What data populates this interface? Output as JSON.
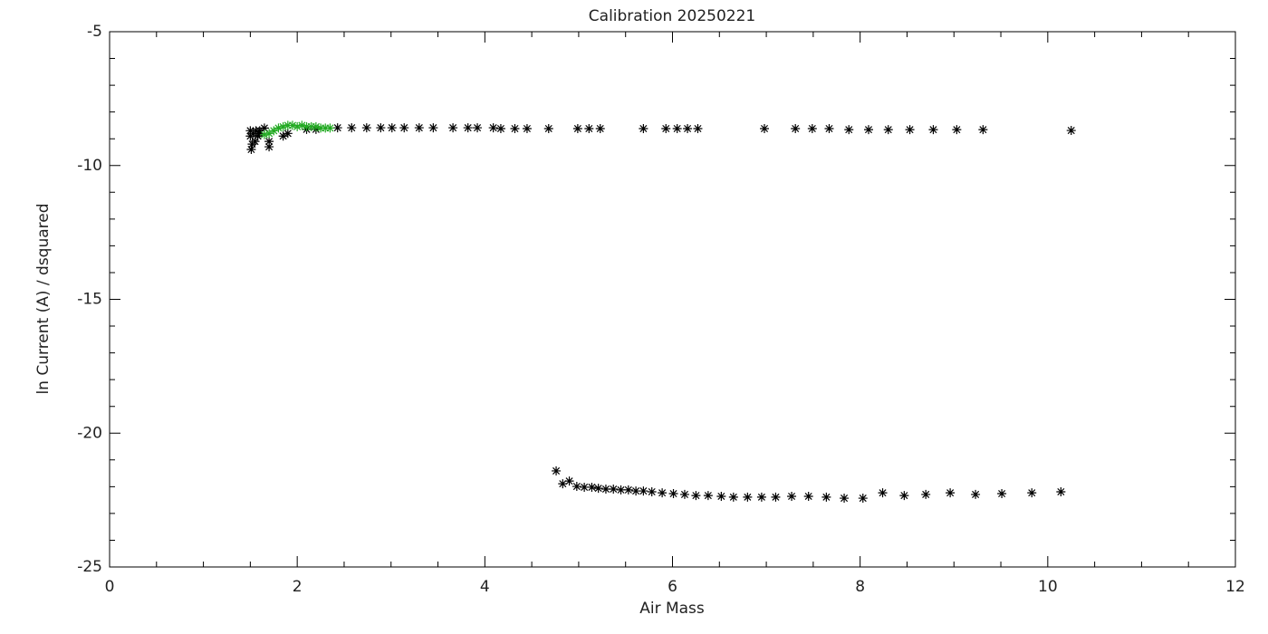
{
  "chart_data": {
    "type": "scatter",
    "title": "Calibration 20250221",
    "x_label": "Air Mass",
    "y_label": "ln Current (A) / dsquared",
    "xlim": [
      0,
      12
    ],
    "ylim": [
      -25,
      -5
    ],
    "xticks": [
      0,
      2,
      4,
      6,
      8,
      10,
      12
    ],
    "yticks": [
      -25,
      -20,
      -15,
      -10,
      -5
    ],
    "x_minor_divisions": 4,
    "y_minor_divisions": 5,
    "marker": "asterisk",
    "series": [
      {
        "color": "#000000",
        "x": [
          1.5,
          1.5,
          1.51,
          1.52,
          1.53,
          1.55,
          1.56,
          1.58,
          1.6,
          1.6,
          1.65,
          1.7,
          1.7,
          1.85,
          1.9,
          2.1,
          2.2,
          2.43,
          2.58,
          2.74,
          2.89,
          3.01,
          3.14,
          3.3,
          3.45,
          3.66,
          3.82,
          3.92,
          4.09,
          4.17,
          4.32,
          4.45,
          4.68,
          4.99,
          5.11,
          5.23,
          5.69,
          5.93,
          6.05,
          6.16,
          6.27,
          6.98,
          7.31,
          7.49,
          7.67,
          7.88,
          8.09,
          8.3,
          8.53,
          8.78,
          9.03,
          9.31,
          10.25
        ],
        "values": [
          -8.7,
          -8.9,
          -9.4,
          -9.2,
          -8.8,
          -9.1,
          -8.7,
          -8.9,
          -8.7,
          -8.8,
          -8.6,
          -9.3,
          -9.1,
          -8.9,
          -8.8,
          -8.65,
          -8.65,
          -8.59,
          -8.59,
          -8.59,
          -8.59,
          -8.59,
          -8.59,
          -8.59,
          -8.59,
          -8.59,
          -8.59,
          -8.59,
          -8.59,
          -8.62,
          -8.62,
          -8.62,
          -8.62,
          -8.62,
          -8.62,
          -8.62,
          -8.62,
          -8.62,
          -8.62,
          -8.62,
          -8.62,
          -8.62,
          -8.62,
          -8.62,
          -8.62,
          -8.66,
          -8.66,
          -8.66,
          -8.66,
          -8.66,
          -8.66,
          -8.66,
          -8.69
        ]
      },
      {
        "color": "#000000",
        "x": [
          4.76,
          4.83,
          4.9,
          4.98,
          5.06,
          5.14,
          5.21,
          5.29,
          5.37,
          5.45,
          5.53,
          5.61,
          5.69,
          5.78,
          5.89,
          6.01,
          6.13,
          6.25,
          6.38,
          6.52,
          6.65,
          6.8,
          6.95,
          7.1,
          7.27,
          7.45,
          7.64,
          7.83,
          8.03,
          8.24,
          8.47,
          8.7,
          8.96,
          9.23,
          9.51,
          9.83,
          10.14
        ],
        "values": [
          -21.41,
          -21.89,
          -21.79,
          -21.99,
          -22.02,
          -22.02,
          -22.06,
          -22.09,
          -22.09,
          -22.12,
          -22.12,
          -22.16,
          -22.16,
          -22.19,
          -22.23,
          -22.26,
          -22.29,
          -22.33,
          -22.33,
          -22.36,
          -22.39,
          -22.39,
          -22.39,
          -22.39,
          -22.36,
          -22.36,
          -22.39,
          -22.43,
          -22.43,
          -22.23,
          -22.33,
          -22.29,
          -22.23,
          -22.29,
          -22.26,
          -22.23,
          -22.19
        ]
      },
      {
        "color": "#22aa22",
        "x": [
          1.65,
          1.7,
          1.75,
          1.8,
          1.85,
          1.9,
          1.95,
          2.0,
          2.05,
          2.1,
          2.15,
          2.2,
          2.25,
          2.3,
          2.35
        ],
        "values": [
          -8.85,
          -8.8,
          -8.7,
          -8.6,
          -8.55,
          -8.5,
          -8.5,
          -8.55,
          -8.5,
          -8.55,
          -8.55,
          -8.55,
          -8.6,
          -8.6,
          -8.6
        ]
      }
    ]
  }
}
